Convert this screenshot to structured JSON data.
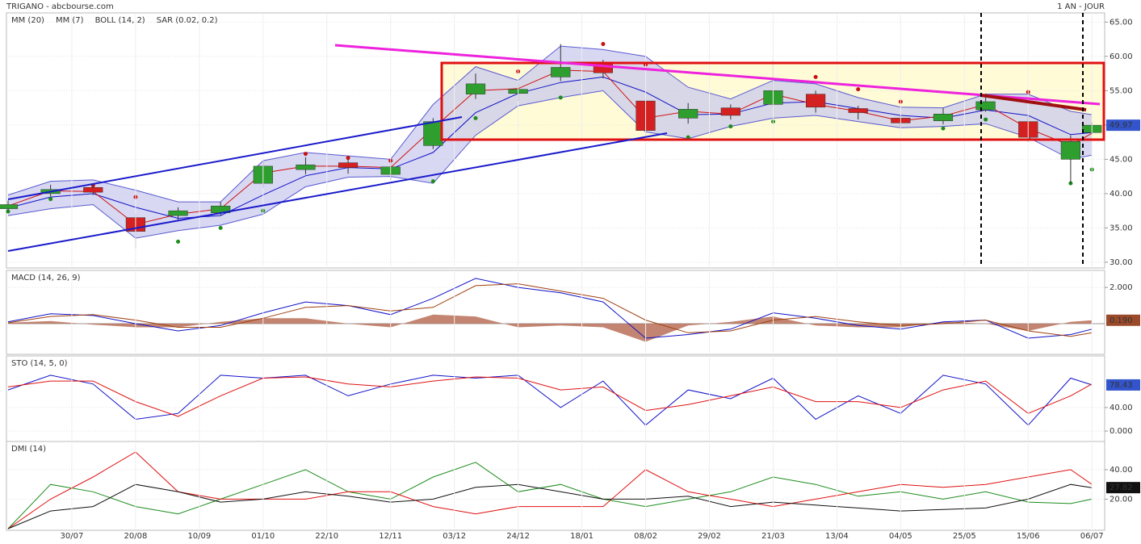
{
  "chart_data": [
    {
      "type": "candlestick",
      "title": "TRIGANO - abcbourse.com",
      "subtitle": "1 AN - JOUR",
      "x": [
        0,
        10,
        20,
        30,
        40,
        50,
        60,
        70,
        80,
        90,
        100,
        110,
        120,
        130,
        140,
        150,
        160,
        170,
        180,
        190,
        200,
        210,
        220,
        230,
        240,
        250,
        255
      ],
      "xlim": [
        0,
        258
      ],
      "open": [
        37.8,
        40.0,
        40.9,
        36.5,
        36.8,
        37.2,
        41.5,
        43.5,
        44.5,
        42.8,
        47.0,
        54.5,
        54.6,
        57.0,
        59.0,
        53.5,
        51.0,
        52.5,
        53.0,
        54.5,
        52.4,
        51.0,
        50.6,
        52.2,
        50.5,
        45.0,
        48.9
      ],
      "high": [
        39.0,
        41.3,
        41.5,
        37.0,
        38.0,
        38.8,
        44.8,
        45.3,
        45.0,
        44.5,
        51.0,
        57.5,
        56.2,
        61.8,
        59.5,
        54.0,
        53.2,
        53.0,
        59.5,
        55.0,
        52.8,
        51.5,
        52.5,
        54.6,
        51.2,
        48.5,
        50.4
      ],
      "low": [
        37.5,
        39.6,
        39.8,
        32.0,
        36.2,
        36.8,
        40.8,
        42.8,
        42.9,
        42.0,
        46.5,
        53.8,
        53.5,
        56.4,
        56.8,
        48.2,
        50.2,
        50.8,
        52.6,
        51.8,
        50.8,
        49.6,
        50.1,
        51.9,
        47.5,
        41.5,
        48.6
      ],
      "close": [
        38.4,
        40.6,
        40.2,
        34.5,
        37.5,
        38.2,
        44.0,
        44.2,
        43.8,
        43.9,
        50.5,
        56.0,
        55.2,
        58.4,
        57.6,
        49.2,
        52.3,
        51.4,
        55.0,
        52.6,
        51.8,
        50.3,
        51.6,
        53.4,
        48.2,
        47.6,
        49.97
      ],
      "up_color": "#2e9e2e",
      "down_color": "#d42020",
      "series": [
        {
          "name": "MM (20)",
          "color": "#1010c8",
          "values": [
            37.9,
            39.5,
            40.0,
            38.0,
            36.4,
            36.8,
            39.8,
            42.6,
            43.8,
            43.6,
            46.0,
            51.8,
            54.6,
            56.2,
            57.0,
            54.8,
            51.5,
            51.6,
            53.2,
            53.4,
            52.4,
            51.4,
            51.0,
            52.2,
            51.4,
            48.6,
            48.9
          ]
        },
        {
          "name": "MM (7)",
          "color": "#d01010",
          "values": [
            38.2,
            40.4,
            40.3,
            35.5,
            37.0,
            37.8,
            43.0,
            44.0,
            44.0,
            43.8,
            49.5,
            55.0,
            55.3,
            58.0,
            57.8,
            51.0,
            52.0,
            51.6,
            54.5,
            53.0,
            52.0,
            50.6,
            51.3,
            53.0,
            49.5,
            47.0,
            48.8
          ]
        },
        {
          "name": "BOLL (14, 2)",
          "color": "#5a5ad0",
          "fill": "#c8c8ee",
          "upper": [
            39.8,
            41.8,
            42.0,
            40.5,
            38.8,
            38.8,
            44.8,
            46.0,
            45.5,
            45.0,
            53.0,
            58.5,
            56.5,
            61.5,
            61.0,
            60.0,
            55.5,
            53.8,
            56.5,
            56.0,
            54.0,
            52.6,
            52.5,
            54.5,
            54.5,
            52.0,
            51.5
          ],
          "lower": [
            36.8,
            37.8,
            38.4,
            33.5,
            34.6,
            35.4,
            37.0,
            41.0,
            42.4,
            42.5,
            41.5,
            48.5,
            52.8,
            54.0,
            55.0,
            49.0,
            48.0,
            49.8,
            51.0,
            51.4,
            50.5,
            49.6,
            49.8,
            50.2,
            48.2,
            45.0,
            45.6
          ]
        },
        {
          "name": "SAR (0.02, 0.2)",
          "color": "#c81010",
          "color_below": "#1c8c1c",
          "values": [
            37.4,
            39.2,
            41.2,
            39.5,
            33.0,
            35.0,
            37.5,
            45.8,
            45.2,
            44.8,
            41.8,
            51.0,
            57.8,
            54.0,
            61.8,
            58.8,
            48.2,
            49.8,
            50.5,
            57.0,
            55.2,
            53.4,
            49.5,
            50.8,
            54.8,
            41.5,
            43.5
          ]
        }
      ],
      "ylim": [
        29.4,
        66.1
      ],
      "yticks": [
        {
          "value": 30,
          "label": "30.00"
        },
        {
          "value": 35,
          "label": "35.00"
        },
        {
          "value": 40,
          "label": "40.00"
        },
        {
          "value": 45,
          "label": "45.00"
        },
        {
          "value": 50,
          "label": "50.00"
        },
        {
          "value": 55,
          "label": "55.00"
        },
        {
          "value": 60,
          "label": "60.00"
        },
        {
          "value": 65,
          "label": "65.00"
        }
      ],
      "last": 49.97
    },
    {
      "type": "macd",
      "title": "MACD (14, 26, 9)",
      "series": [
        {
          "color": "#b87058",
          "style": "area",
          "values": [
            0.05,
            0.15,
            -0.05,
            -0.2,
            -0.2,
            0.1,
            0.3,
            0.3,
            0.0,
            -0.2,
            0.5,
            0.4,
            -0.2,
            -0.1,
            -0.2,
            -1.0,
            -0.1,
            0.1,
            0.4,
            -0.1,
            -0.2,
            -0.2,
            0.1,
            0.0,
            -0.4,
            0.1,
            0.19
          ]
        },
        {
          "color": "#1010c8",
          "values": [
            0.1,
            0.55,
            0.45,
            0.0,
            -0.4,
            -0.1,
            0.6,
            1.2,
            1.0,
            0.5,
            1.4,
            2.5,
            2.0,
            1.7,
            1.2,
            -0.8,
            -0.6,
            -0.3,
            0.6,
            0.3,
            -0.1,
            -0.3,
            0.1,
            0.2,
            -0.8,
            -0.6,
            -0.3
          ]
        },
        {
          "color": "#a04010",
          "values": [
            0.05,
            0.4,
            0.5,
            0.2,
            -0.2,
            -0.2,
            0.3,
            0.9,
            1.0,
            0.7,
            0.9,
            2.1,
            2.2,
            1.8,
            1.4,
            0.2,
            -0.5,
            -0.4,
            0.2,
            0.4,
            0.1,
            -0.1,
            0.0,
            0.2,
            -0.4,
            -0.7,
            -0.5
          ]
        }
      ],
      "ylim": [
        -1.6,
        2.85
      ],
      "yticks": [
        {
          "value": 2,
          "label": "2.000"
        }
      ],
      "last": {
        "value": 0.19,
        "label": "0.190"
      }
    },
    {
      "type": "line",
      "title": "STO (14, 5, 0)",
      "series": [
        {
          "color": "#1010c8",
          "values": [
            70,
            95,
            80,
            20,
            30,
            95,
            90,
            95,
            60,
            80,
            95,
            90,
            95,
            40,
            85,
            10,
            70,
            55,
            90,
            20,
            60,
            30,
            95,
            80,
            10,
            90,
            78.43
          ]
        },
        {
          "color": "#e01010",
          "values": [
            75,
            85,
            85,
            50,
            25,
            60,
            90,
            92,
            80,
            75,
            85,
            92,
            90,
            70,
            75,
            35,
            45,
            60,
            75,
            50,
            50,
            40,
            70,
            85,
            30,
            60,
            80
          ]
        }
      ],
      "ylim": [
        -15,
        125
      ],
      "yticks": [
        {
          "value": 0,
          "label": "0.000"
        },
        {
          "value": 40,
          "label": "40.00"
        }
      ],
      "last": 78.43
    },
    {
      "type": "line",
      "title": "DMI (14)",
      "series": [
        {
          "color": "#1c8c1c",
          "values": [
            0,
            30,
            25,
            15,
            10,
            20,
            30,
            40,
            25,
            20,
            35,
            45,
            25,
            30,
            20,
            15,
            20,
            25,
            35,
            30,
            22,
            25,
            20,
            25,
            18,
            17,
            20
          ]
        },
        {
          "color": "#e01010",
          "values": [
            0,
            20,
            35,
            52,
            25,
            20,
            20,
            20,
            25,
            25,
            15,
            10,
            15,
            15,
            15,
            40,
            25,
            20,
            15,
            20,
            25,
            30,
            28,
            30,
            35,
            40,
            30
          ]
        },
        {
          "color": "#111111",
          "values": [
            0,
            12,
            15,
            30,
            25,
            18,
            20,
            25,
            22,
            18,
            20,
            28,
            30,
            25,
            20,
            20,
            22,
            15,
            18,
            16,
            14,
            12,
            13,
            14,
            20,
            30,
            27.82
          ]
        }
      ],
      "ylim": [
        0,
        58
      ],
      "yticks": [
        {
          "value": 20,
          "label": "20.00"
        },
        {
          "value": 40,
          "label": "40.00"
        }
      ],
      "xticks": [
        {
          "value": 15,
          "label": "30/07"
        },
        {
          "value": 30,
          "label": "20/08"
        },
        {
          "value": 45,
          "label": "10/09"
        },
        {
          "value": 60,
          "label": "01/10"
        },
        {
          "value": 75,
          "label": "22/10"
        },
        {
          "value": 90,
          "label": "12/11"
        },
        {
          "value": 105,
          "label": "03/12"
        },
        {
          "value": 120,
          "label": "24/12"
        },
        {
          "value": 135,
          "label": "18/01"
        },
        {
          "value": 150,
          "label": "08/02"
        },
        {
          "value": 165,
          "label": "29/02"
        },
        {
          "value": 180,
          "label": "21/03"
        },
        {
          "value": 195,
          "label": "13/04"
        },
        {
          "value": 210,
          "label": "04/05"
        },
        {
          "value": 225,
          "label": "25/05"
        },
        {
          "value": 240,
          "label": "15/06"
        },
        {
          "value": 255,
          "label": "06/07"
        }
      ],
      "last": 27.82
    }
  ]
}
